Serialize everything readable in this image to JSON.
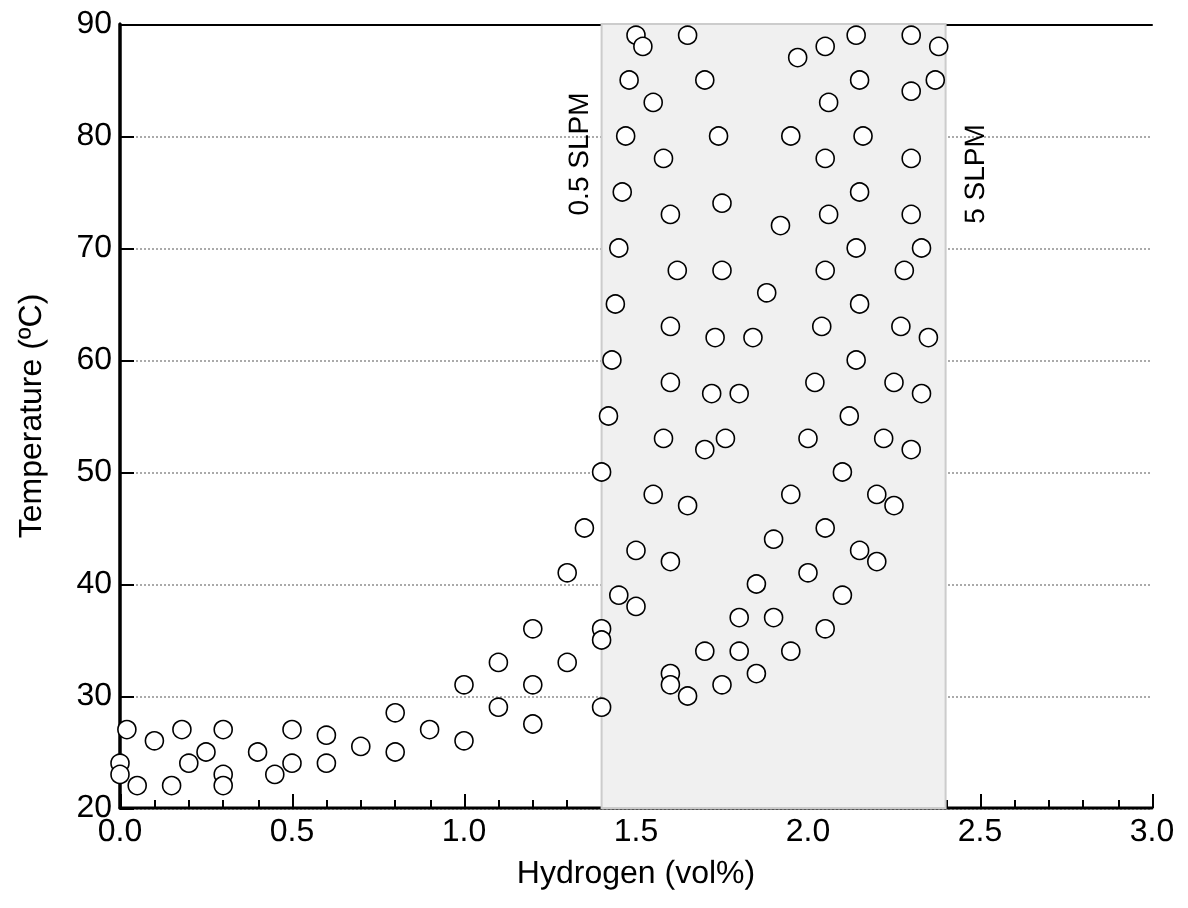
{
  "chart_data": {
    "type": "scatter",
    "xlabel": "Hydrogen (vol%)",
    "ylabel": "Temperature (ºC)",
    "xlim": [
      0,
      3
    ],
    "xticks": [
      {
        "value": 0,
        "label": "0.0"
      },
      {
        "value": 0.5,
        "label": "0.5"
      },
      {
        "value": 1,
        "label": "1.0"
      },
      {
        "value": 1.5,
        "label": "1.5"
      },
      {
        "value": 2,
        "label": "2.0"
      },
      {
        "value": 2.5,
        "label": "2.5"
      },
      {
        "value": 3,
        "label": "3.0"
      }
    ],
    "ylim": [
      20,
      90
    ],
    "yticks": [
      20,
      30,
      40,
      50,
      60,
      70,
      80,
      90
    ],
    "grid": "y",
    "marker": "circle",
    "bands": [
      {
        "axis": "x",
        "from": 1.4,
        "to": 2.4,
        "color": "#f0f0f0"
      }
    ],
    "annotations": [
      "0.5 SLPM",
      "5 SLPM"
    ],
    "series": [
      {
        "color": "#ffffff",
        "x": [
          0,
          0.2,
          0.4,
          0.6,
          0.8,
          1.0,
          1.1,
          1.2,
          1.3,
          1.35,
          1.4,
          1.42,
          1.43,
          1.44,
          1.45,
          1.46,
          1.47,
          1.48,
          1.5,
          0,
          0.3,
          0.5,
          0.7,
          0.9,
          1.1,
          1.2,
          1.3,
          1.4,
          1.45,
          1.5,
          1.55,
          1.58,
          1.6,
          1.6,
          1.62,
          1.6,
          1.58,
          1.55,
          1.52,
          1.4,
          1.5,
          1.6,
          1.65,
          1.7,
          1.72,
          1.73,
          1.75,
          1.75,
          1.74,
          1.7,
          1.65,
          0.6,
          0.8,
          1.0,
          1.2,
          1.4,
          1.6,
          1.7,
          1.8,
          1.85,
          1.9,
          1.95,
          2.0,
          2.02,
          2.04,
          2.05,
          2.06,
          2.05,
          2.06,
          2.05,
          1.6,
          1.8,
          1.9,
          2.0,
          2.05,
          2.1,
          2.12,
          2.14,
          2.15,
          2.14,
          2.15,
          2.16,
          2.15,
          2.14,
          1.65,
          1.75,
          1.85,
          1.95,
          2.05,
          2.1,
          2.15,
          2.2,
          2.22,
          2.25,
          2.27,
          2.28,
          2.3,
          2.3,
          2.3,
          2.3,
          1.76,
          1.8,
          1.84,
          1.88,
          1.92,
          1.95,
          1.97,
          2.2,
          2.25,
          2.3,
          2.33,
          2.35,
          2.33,
          2.37,
          2.38,
          0.02,
          0.1,
          0.18,
          0.3,
          0.05,
          0.15,
          0.3,
          0.45,
          0.5,
          0.25
        ],
        "values": [
          24,
          24,
          25,
          26.5,
          28.5,
          31,
          33,
          36,
          41,
          45,
          50,
          55,
          60,
          65,
          70,
          75,
          80,
          85,
          89,
          23,
          23,
          24,
          25.5,
          27,
          29,
          31,
          33,
          36,
          39,
          43,
          48,
          53,
          58,
          63,
          68,
          73,
          78,
          83,
          88,
          35,
          38,
          42,
          47,
          52,
          57,
          62,
          68,
          74,
          80,
          85,
          89,
          24,
          25,
          26,
          27.5,
          29,
          32,
          34,
          37,
          40,
          44,
          48,
          53,
          58,
          63,
          68,
          73,
          78,
          83,
          88,
          31,
          34,
          37,
          41,
          45,
          50,
          55,
          60,
          65,
          70,
          75,
          80,
          85,
          89,
          30,
          31,
          32,
          34,
          36,
          39,
          43,
          48,
          53,
          58,
          63,
          68,
          73,
          78,
          84,
          89,
          53,
          57,
          62,
          66,
          72,
          80,
          87,
          42,
          47,
          52,
          57,
          62,
          70,
          85,
          88,
          27,
          26,
          27,
          27,
          22,
          22,
          22,
          23,
          27,
          25
        ]
      }
    ]
  }
}
